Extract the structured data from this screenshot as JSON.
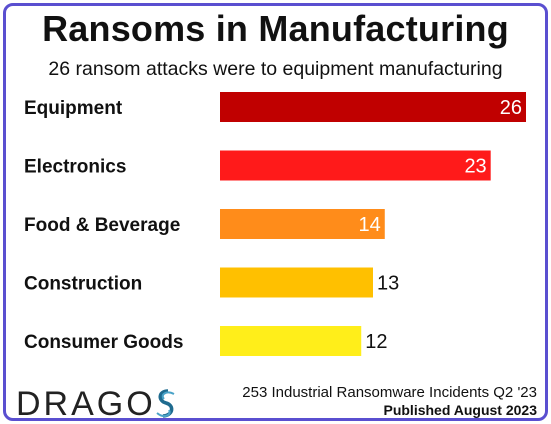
{
  "header": {
    "title": "Ransoms in Manufacturing",
    "subtitle": "26 ransom attacks were to equipment manufacturing"
  },
  "chart_data": {
    "type": "bar",
    "orientation": "horizontal",
    "title": "Ransoms in Manufacturing",
    "subtitle": "26 ransom attacks were to equipment manufacturing",
    "categories": [
      "Equipment",
      "Electronics",
      "Food & Beverage",
      "Construction",
      "Consumer Goods"
    ],
    "values": [
      26,
      23,
      14,
      13,
      12
    ],
    "colors": [
      "#c00000",
      "#ff1a1a",
      "#ff8c1a",
      "#ffc000",
      "#ffee1a"
    ],
    "label_colors": [
      "#ffffff",
      "#ffffff",
      "#ffffff",
      "#111111",
      "#111111"
    ],
    "label_inside": [
      true,
      true,
      true,
      false,
      false
    ],
    "xlim": [
      0,
      26
    ],
    "grid": false,
    "legend": "none"
  },
  "footer": {
    "source": "253 Industrial Ransomware Incidents Q2 '23",
    "published": "Published August 2023"
  },
  "logo": {
    "text": "DRAGOS",
    "accent": "#1f6b8f"
  },
  "colors": {
    "border": "#5a4fd0"
  }
}
